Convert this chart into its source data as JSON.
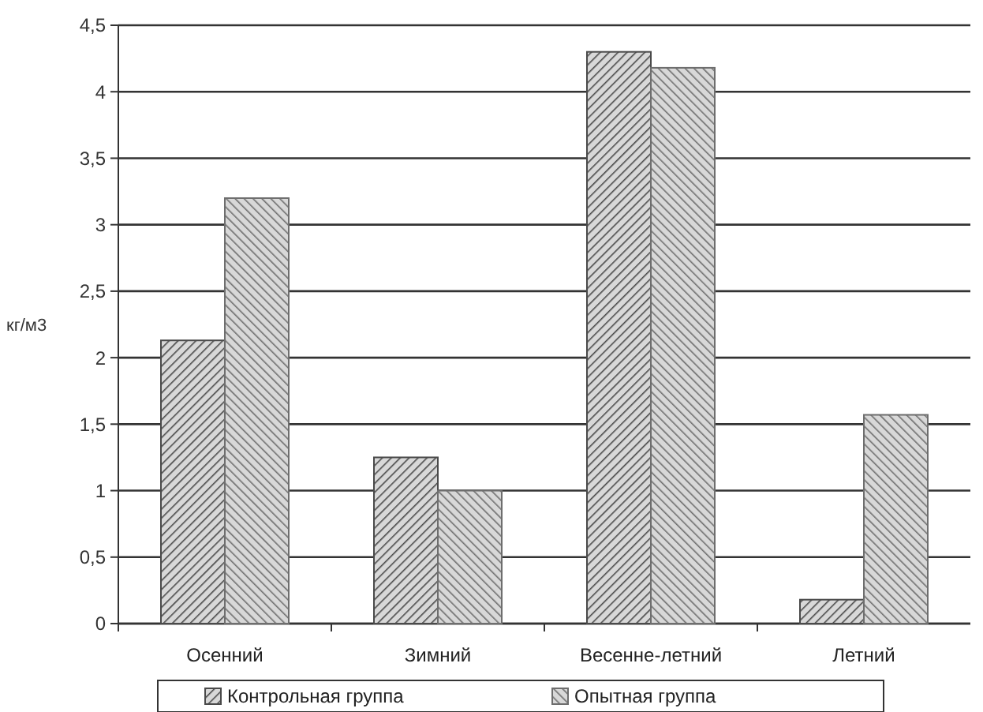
{
  "chart_data": {
    "type": "bar",
    "ylabel": "кг/м3",
    "categories": [
      "Осенний",
      "Зимний",
      "Весенне-летний",
      "Летний"
    ],
    "series": [
      {
        "name": "Контрольная группа",
        "color": "#4a4a4a",
        "values": [
          2.13,
          1.25,
          4.3,
          0.18
        ]
      },
      {
        "name": "Опытная группа",
        "color": "#6e6e6e",
        "values": [
          3.2,
          1.0,
          4.18,
          1.57
        ]
      }
    ],
    "ylim": [
      0,
      4.5
    ],
    "yticks": [
      {
        "value": 0,
        "label": "0"
      },
      {
        "value": 0.5,
        "label": "0,5"
      },
      {
        "value": 1,
        "label": "1"
      },
      {
        "value": 1.5,
        "label": "1,5"
      },
      {
        "value": 2,
        "label": "2"
      },
      {
        "value": 2.5,
        "label": "2,5"
      },
      {
        "value": 3,
        "label": "3"
      },
      {
        "value": 3.5,
        "label": "3,5"
      },
      {
        "value": 4,
        "label": "4"
      },
      {
        "value": 4.5,
        "label": "4,5"
      }
    ],
    "grid": "y",
    "legend": "bottom"
  }
}
